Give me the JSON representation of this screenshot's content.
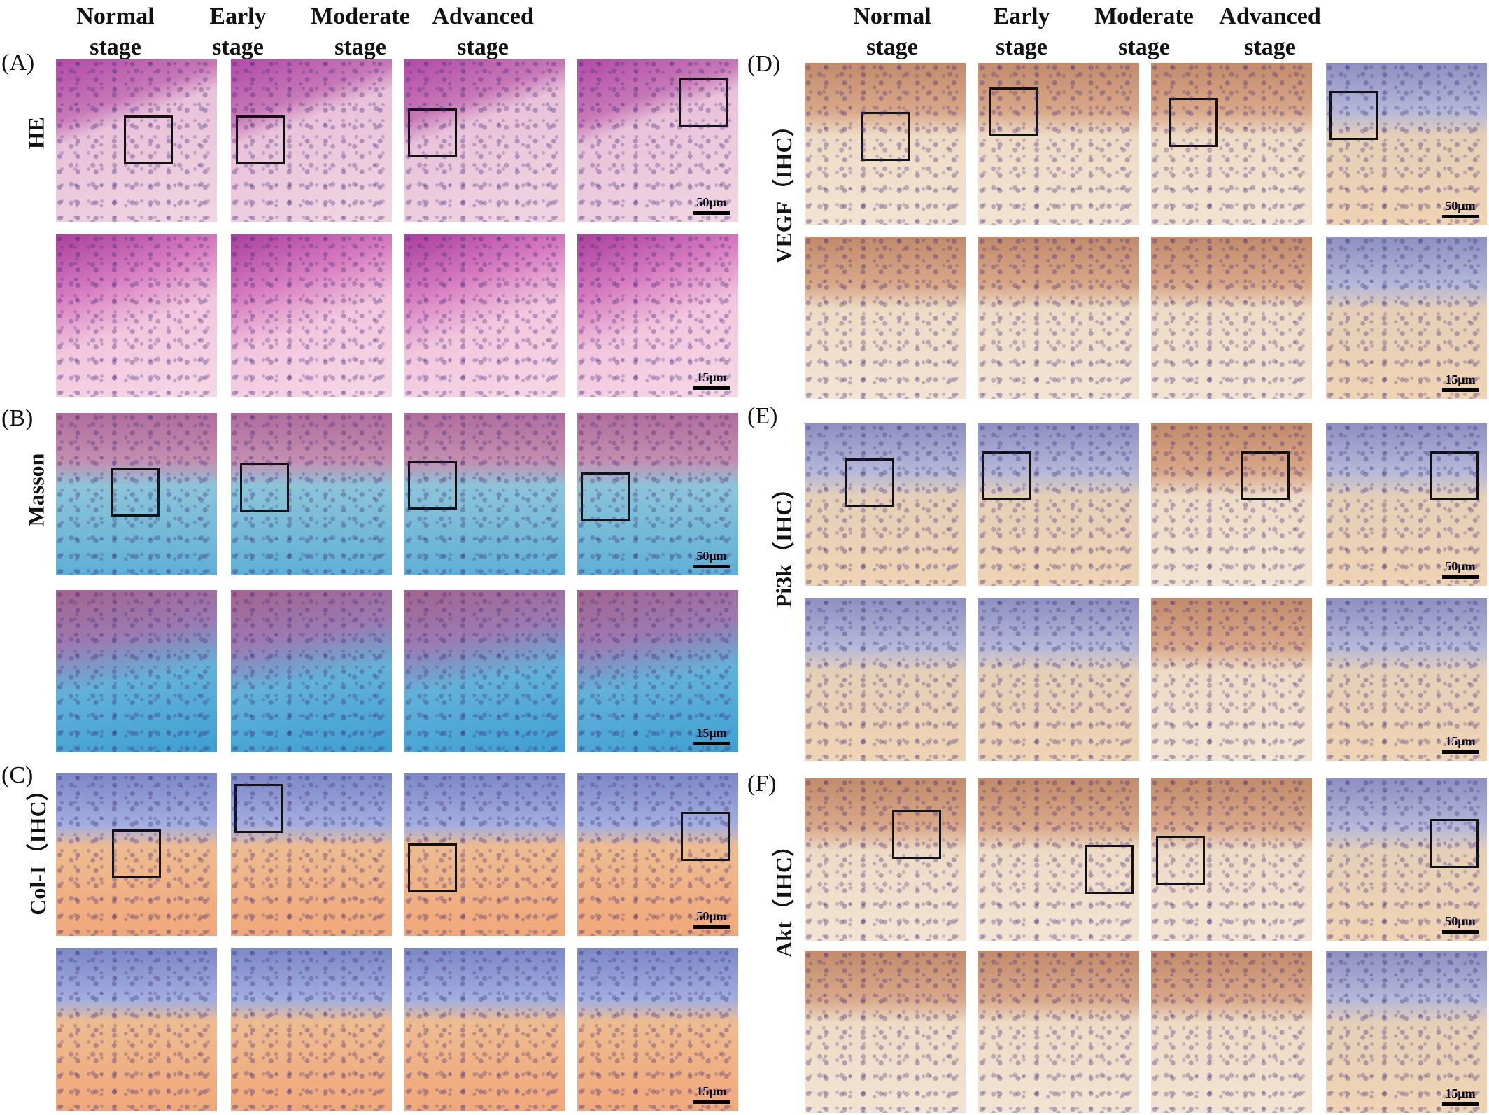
{
  "columns": [
    "Normal\nstage",
    "Early\nstage",
    "Moderate\nstage",
    "Advanced\nstage"
  ],
  "column_headers": {
    "left": [
      [
        "Normal",
        "stage"
      ],
      [
        "Early",
        "stage"
      ],
      [
        "Moderate",
        "stage"
      ],
      [
        "Advanced",
        "stage"
      ]
    ],
    "right": [
      [
        "Normal",
        "stage"
      ],
      [
        "Early",
        "stage"
      ],
      [
        "Moderate",
        "stage"
      ],
      [
        "Advanced",
        "stage"
      ]
    ]
  },
  "panels": [
    {
      "letter": "(A)",
      "label": "HE"
    },
    {
      "letter": "(B)",
      "label": "Masson"
    },
    {
      "letter": "(C)",
      "label": "Col-I（IHC）"
    },
    {
      "letter": "(D)",
      "label": "VEGF（IHC）"
    },
    {
      "letter": "(E)",
      "label": "Pi3k（IHC）"
    },
    {
      "letter": "(F)",
      "label": "Akt（IHC）"
    }
  ],
  "scale_bars": {
    "low": "50μm",
    "high": "15μm"
  }
}
